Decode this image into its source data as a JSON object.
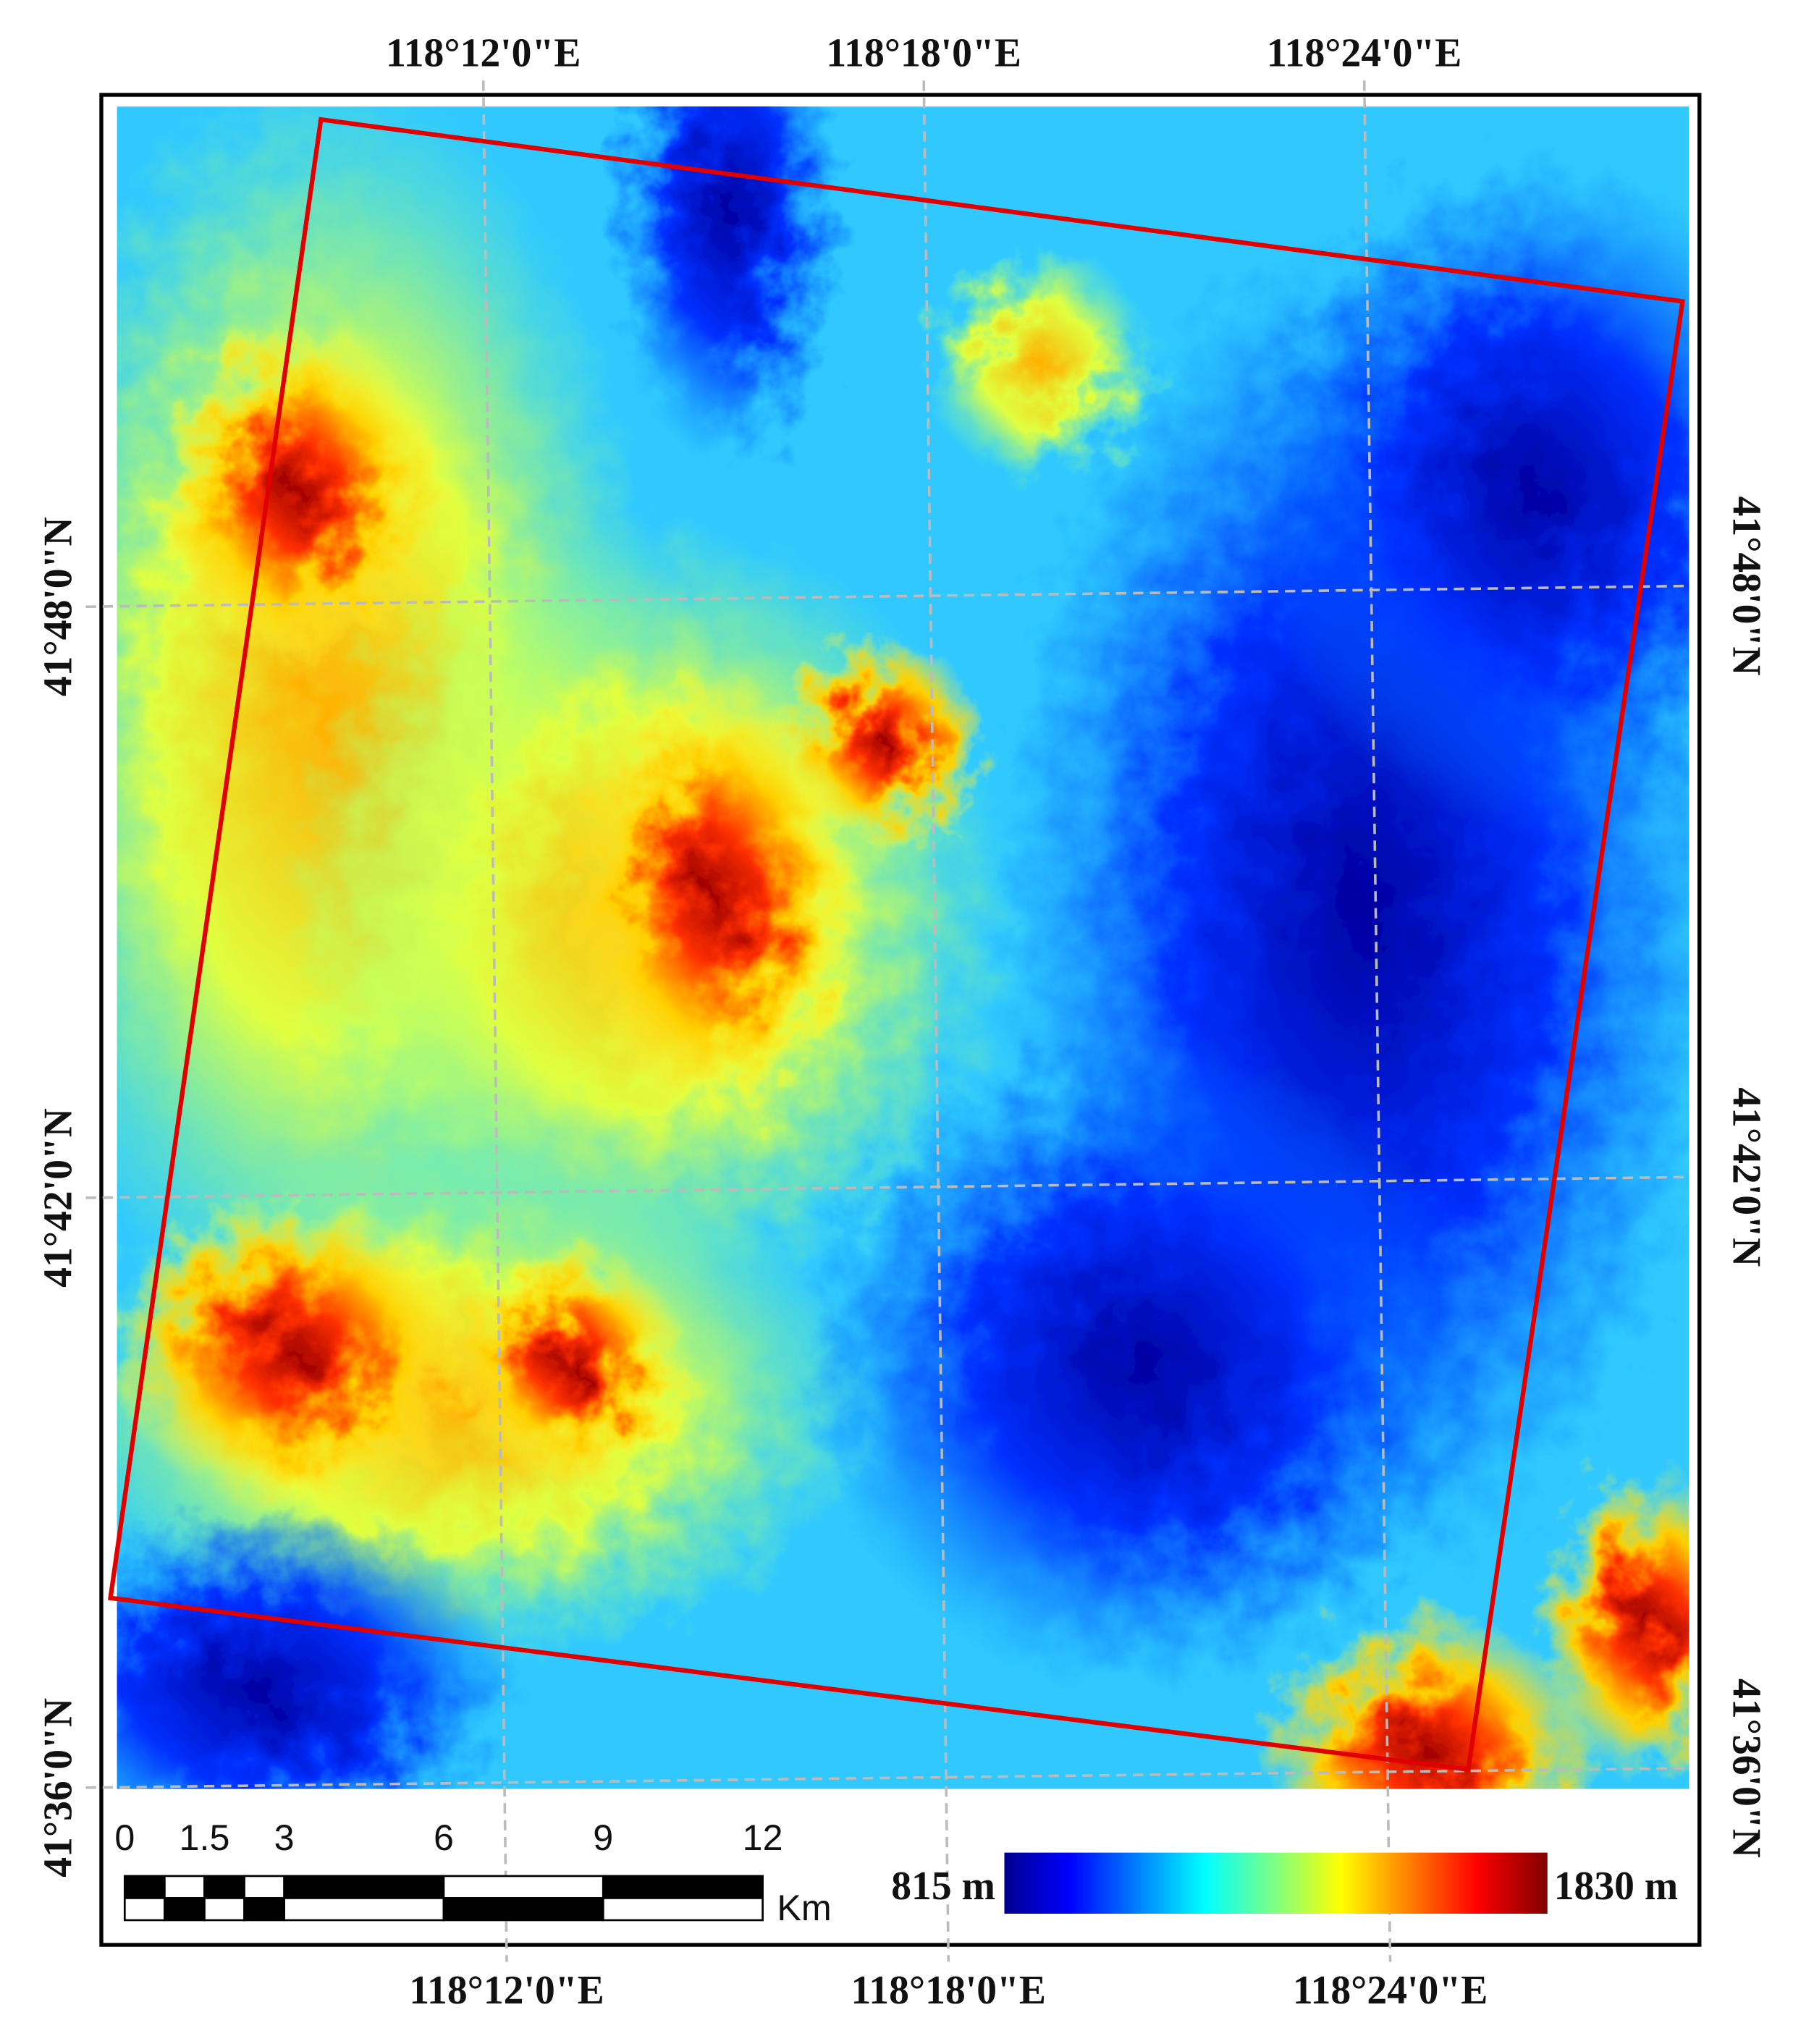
{
  "map": {
    "top_labels": [
      "118°12'0\"E",
      "118°18'0\"E",
      "118°24'0\"E"
    ],
    "bottom_labels": [
      "118°12'0\"E",
      "118°18'0\"E",
      "118°24'0\"E"
    ],
    "left_labels": [
      "41°48'0\"N",
      "41°42'0\"N",
      "41°36'0\"N"
    ],
    "right_labels": [
      "41°48'0\"N",
      "41°42'0\"N",
      "41°36'0\"N"
    ],
    "scale_bar": {
      "ticks": [
        0,
        1.5,
        3,
        6,
        9,
        12
      ],
      "unit": "Km"
    },
    "legend": {
      "min_label": "815 m",
      "max_label": "1830 m"
    }
  }
}
